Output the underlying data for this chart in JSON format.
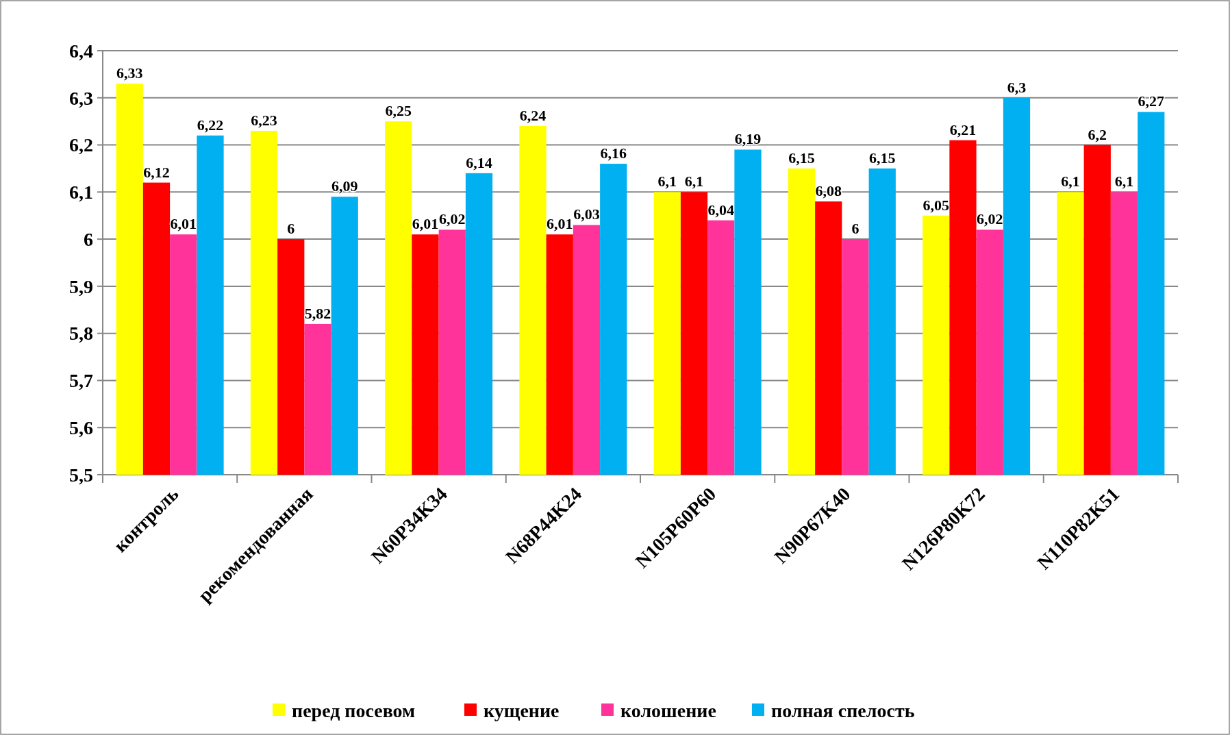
{
  "chart_data": {
    "type": "bar",
    "categories": [
      "контроль",
      "рекомендованная",
      "N60P34K34",
      "N68P44K24",
      "N105P60P60",
      "N90P67K40",
      "N126P80K72",
      "N110P82K51"
    ],
    "series": [
      {
        "name": "перед посевом",
        "color": "#ffff00",
        "values": [
          6.33,
          6.23,
          6.25,
          6.24,
          6.1,
          6.15,
          6.05,
          6.1
        ],
        "value_labels": [
          "6,33",
          "6,23",
          "6,25",
          "6,24",
          "6,1",
          "6,15",
          "6,05",
          "6,1"
        ]
      },
      {
        "name": "кущение",
        "color": "#ff0000",
        "values": [
          6.12,
          6,
          6.01,
          6.01,
          6.1,
          6.08,
          6.21,
          6.2
        ],
        "value_labels": [
          "6,12",
          "6",
          "6,01",
          "6,01",
          "6,1",
          "6,08",
          "6,21",
          "6,2"
        ]
      },
      {
        "name": "колошение",
        "color": "#ff3399",
        "values": [
          6.01,
          5.82,
          6.02,
          6.03,
          6.04,
          6,
          6.02,
          6.1
        ],
        "value_labels": [
          "6,01",
          "5,82",
          "6,02",
          "6,03",
          "6,04",
          "6",
          "6,02",
          "6,1"
        ]
      },
      {
        "name": "полная спелость",
        "color": "#00b0f0",
        "values": [
          6.22,
          6.09,
          6.14,
          6.16,
          6.19,
          6.15,
          6.3,
          6.27
        ],
        "value_labels": [
          "6,22",
          "6,09",
          "6,14",
          "6,16",
          "6,19",
          "6,15",
          "6,3",
          "6,27"
        ]
      }
    ],
    "ylim": [
      5.5,
      6.4
    ],
    "yticks": [
      {
        "value": 5.5,
        "label": "5,5"
      },
      {
        "value": 5.6,
        "label": "5,6"
      },
      {
        "value": 5.7,
        "label": "5,7"
      },
      {
        "value": 5.8,
        "label": "5,8"
      },
      {
        "value": 5.9,
        "label": "5,9"
      },
      6,
      {
        "value": 6.1,
        "label": "6,1"
      },
      {
        "value": 6.2,
        "label": "6,2"
      },
      {
        "value": 6.3,
        "label": "6,3"
      },
      {
        "value": 6.4,
        "label": "6,4"
      }
    ],
    "grid": "y",
    "legend": "bottom"
  }
}
